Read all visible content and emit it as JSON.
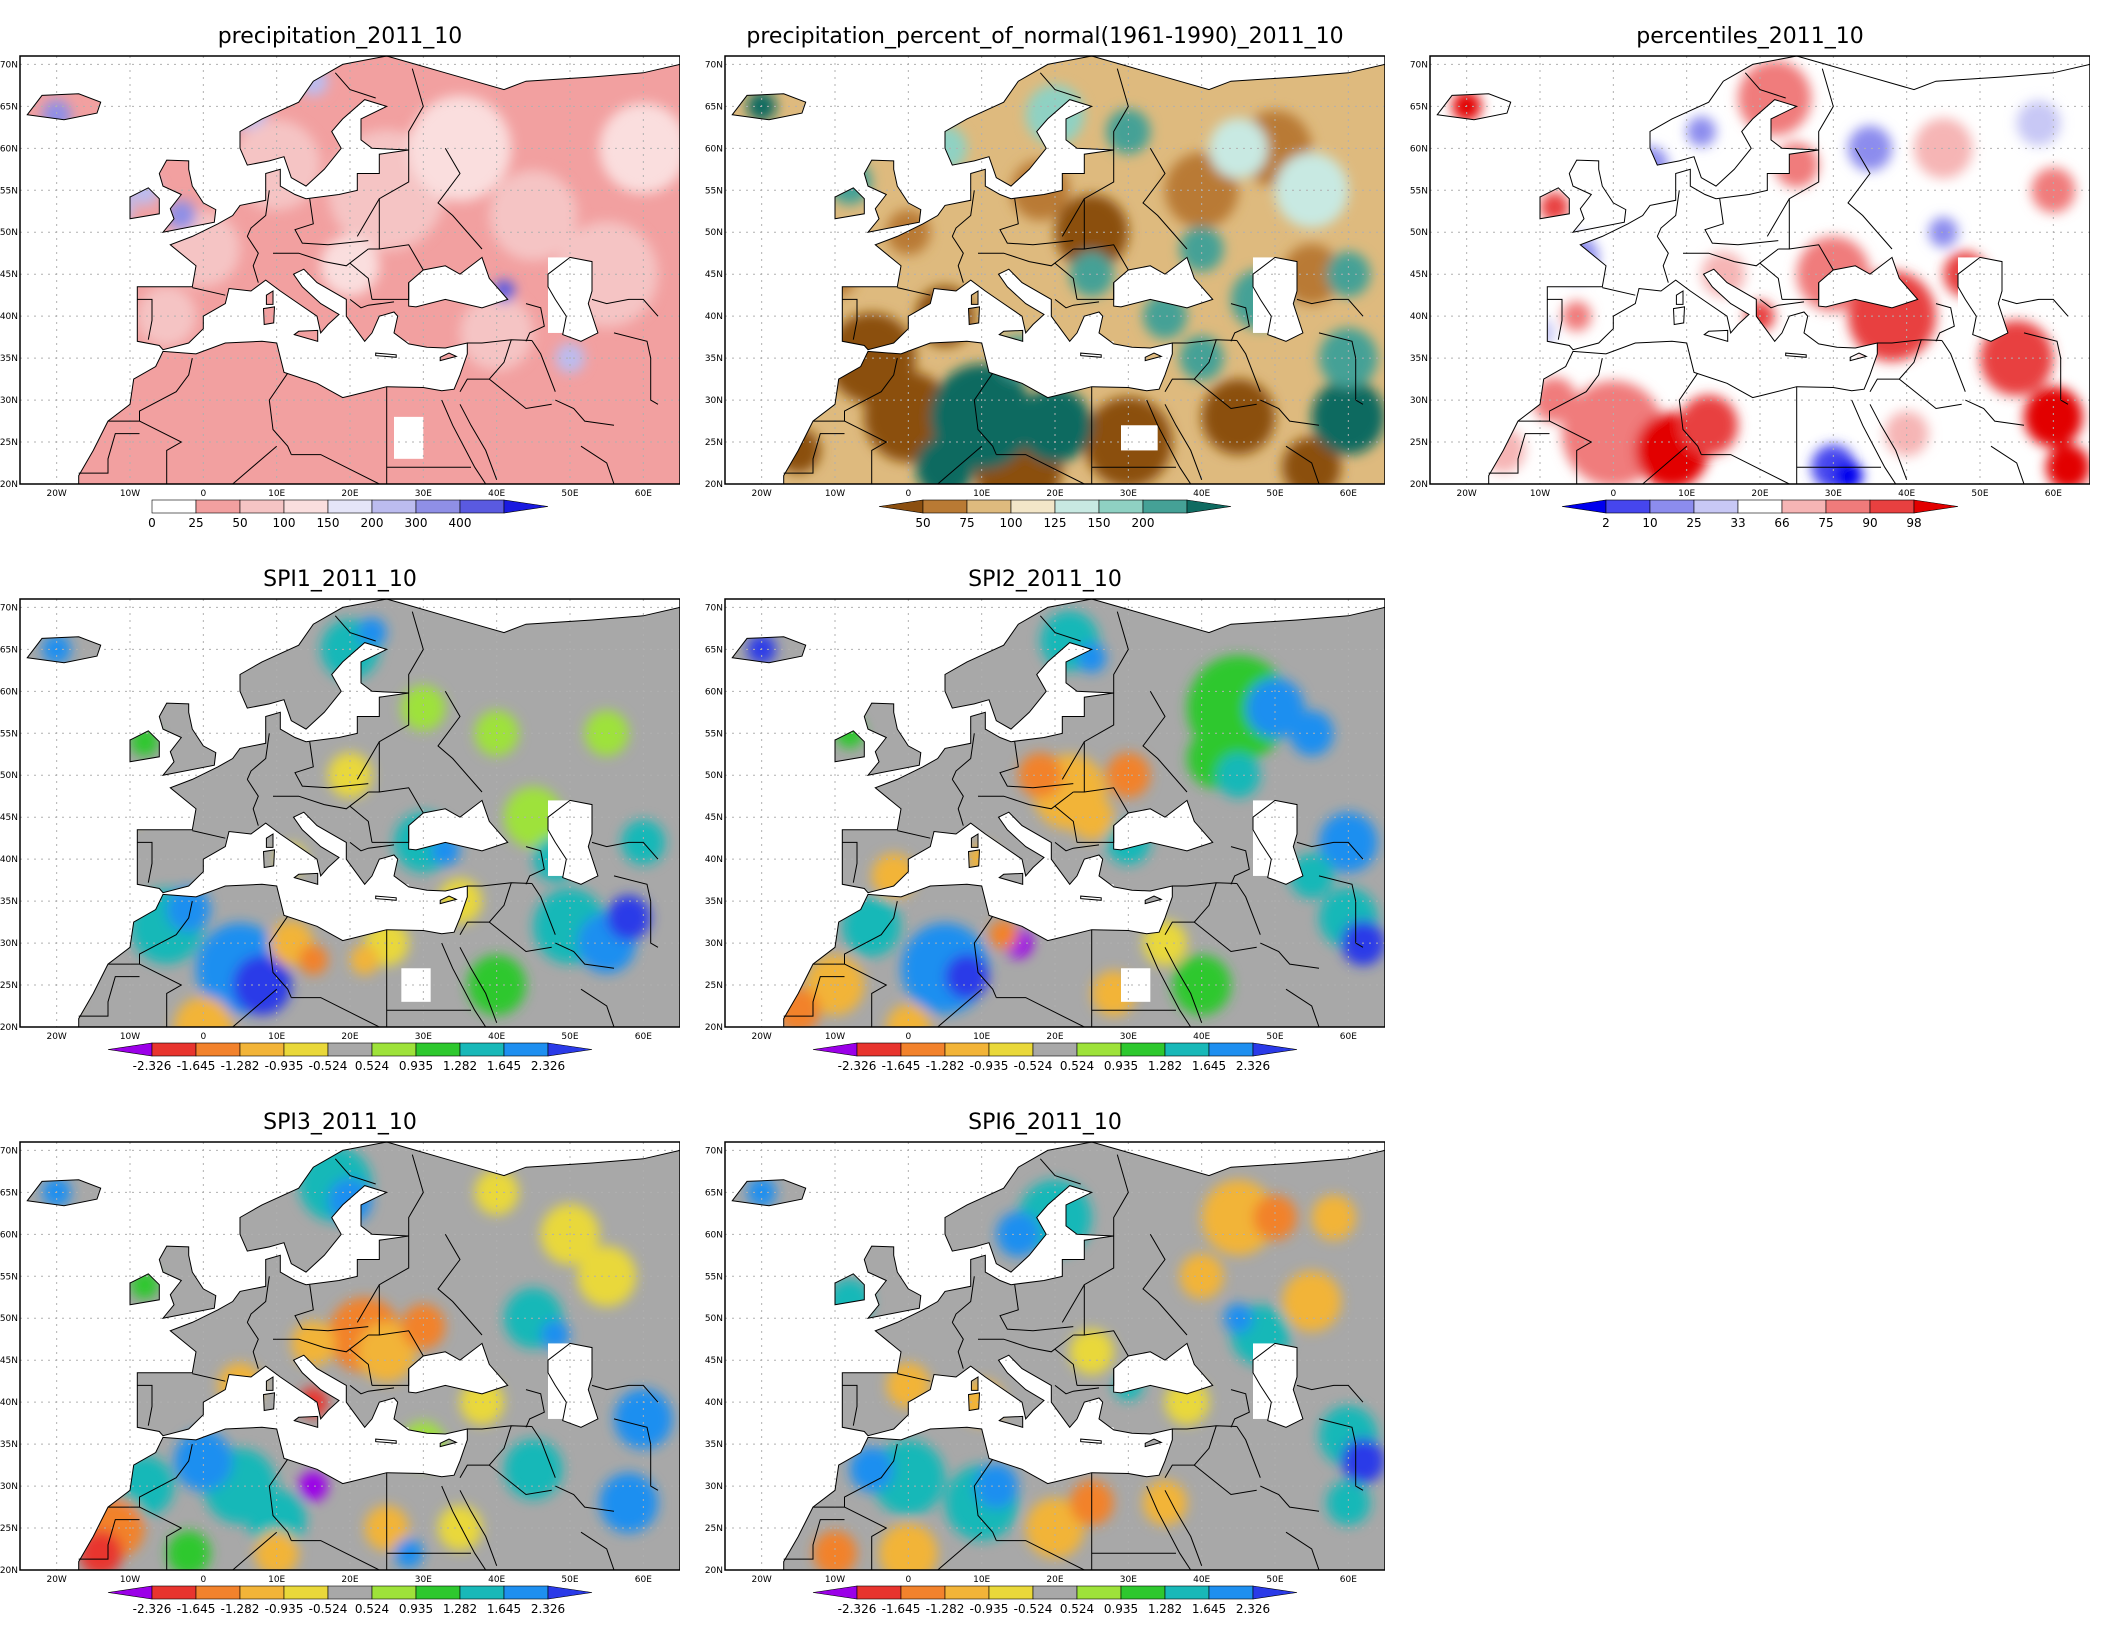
{
  "palettes": {
    "precip": [
      "#ffffff",
      "#f2a0a0",
      "#f5c4c4",
      "#fadede",
      "#e5e5f8",
      "#bcbcef",
      "#8f8fe6",
      "#5a5ae0",
      "#1a1ae0"
    ],
    "percent": [
      "#8b4f10",
      "#b97a34",
      "#deba7e",
      "#f3e6c8",
      "#c8e9e2",
      "#8fd1c3",
      "#45a196",
      "#0f6b61"
    ],
    "percentiles": [
      "#0000ee",
      "#4646ee",
      "#8c8cee",
      "#c8c8f5",
      "#ffffff",
      "#f6b5b5",
      "#f07b7b",
      "#e84040",
      "#e20000"
    ],
    "spi": [
      "#9b00e8",
      "#e8342e",
      "#f2822c",
      "#f2b438",
      "#e9d83a",
      "#a8a8a8",
      "#9ee23a",
      "#2ec82e",
      "#18b8b8",
      "#1e8ff0",
      "#2a3ae8"
    ]
  },
  "axes": {
    "lon_labels": [
      "20W",
      "10W",
      "0",
      "10E",
      "20E",
      "30E",
      "40E",
      "50E",
      "60E"
    ],
    "lat_labels": [
      "20N",
      "25N",
      "30N",
      "35N",
      "40N",
      "45N",
      "50N",
      "55N",
      "60N",
      "65N",
      "70N"
    ]
  },
  "panels": [
    {
      "id": "precipitation",
      "title": "precipitation_2011_10",
      "palette": "precip",
      "border_color": "#33cccc",
      "colorbar": {
        "labels": [
          "0",
          "25",
          "50",
          "100",
          "150",
          "200",
          "300",
          "400"
        ],
        "left_arrow": false,
        "right_arrow": true
      }
    },
    {
      "id": "percent_of_normal",
      "title": "precipitation_percent_of_normal(1961-1990)_2011_10",
      "palette": "percent",
      "border_color": "#000000",
      "colorbar": {
        "labels": [
          "50",
          "75",
          "100",
          "125",
          "150",
          "200"
        ],
        "left_arrow": true,
        "right_arrow": true
      }
    },
    {
      "id": "percentiles",
      "title": "percentiles_2011_10",
      "palette": "percentiles",
      "border_color": "#000000",
      "colorbar": {
        "labels": [
          "2",
          "10",
          "25",
          "33",
          "66",
          "75",
          "90",
          "98"
        ],
        "left_arrow": true,
        "right_arrow": true
      }
    },
    {
      "id": "spi1",
      "title": "SPI1_2011_10",
      "palette": "spi",
      "border_color": "#000000",
      "colorbar": {
        "labels": [
          "-2.326",
          "-1.645",
          "-1.282",
          "-0.935",
          "-0.524",
          "0.524",
          "0.935",
          "1.282",
          "1.645",
          "2.326"
        ],
        "left_arrow": true,
        "right_arrow": true
      }
    },
    {
      "id": "spi2",
      "title": "SPI2_2011_10",
      "palette": "spi",
      "border_color": "#000000",
      "colorbar": {
        "labels": [
          "-2.326",
          "-1.645",
          "-1.282",
          "-0.935",
          "-0.524",
          "0.524",
          "0.935",
          "1.282",
          "1.645",
          "2.326"
        ],
        "left_arrow": true,
        "right_arrow": true
      }
    },
    {
      "id": "spi3",
      "title": "SPI3_2011_10",
      "palette": "spi",
      "border_color": "#000000",
      "colorbar": {
        "labels": [
          "-2.326",
          "-1.645",
          "-1.282",
          "-0.935",
          "-0.524",
          "0.524",
          "0.935",
          "1.282",
          "1.645",
          "2.326"
        ],
        "left_arrow": true,
        "right_arrow": true
      }
    },
    {
      "id": "spi6",
      "title": "SPI6_2011_10",
      "palette": "spi",
      "border_color": "#000000",
      "colorbar": {
        "labels": [
          "-2.326",
          "-1.645",
          "-1.282",
          "-0.935",
          "-0.524",
          "0.524",
          "0.935",
          "1.282",
          "1.645",
          "2.326"
        ],
        "left_arrow": true,
        "right_arrow": true
      }
    }
  ]
}
